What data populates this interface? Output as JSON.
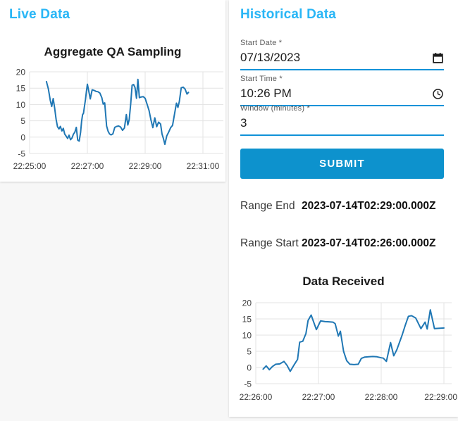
{
  "colors": {
    "page_background": "#f7f7f7",
    "card_background": "#ffffff",
    "heading_accent": "#29b6f6",
    "input_underline": "#1092d8",
    "submit_background": "#0d92cd",
    "submit_text": "#ffffff",
    "chart_line": "#1f77b4",
    "chart_grid": "#e3e3e3"
  },
  "live_panel": {
    "title": "Live Data"
  },
  "historical_panel": {
    "title": "Historical Data",
    "fields": [
      {
        "label": "Start Date *",
        "value": "07/13/2023",
        "icon": "calendar-icon"
      },
      {
        "label": "Start Time *",
        "value": "10:26 PM",
        "icon": "clock-icon"
      },
      {
        "label": "Window (minutes) *",
        "value": "3",
        "icon": null
      }
    ],
    "submit_label": "SUBMIT",
    "results": [
      {
        "label": "Range End",
        "value": "2023-07-14T02:29:00.000Z"
      },
      {
        "label": "Range Start",
        "value": "2023-07-14T02:26:00.000Z"
      }
    ]
  },
  "chart_data": [
    {
      "type": "line",
      "title": "Aggregate QA Sampling",
      "xlabel": "",
      "ylabel": "",
      "legend": false,
      "grid": true,
      "x_start": "22:25:00",
      "x_unit": "seconds_after_x_start",
      "x_tick_labels": [
        "22:25:00",
        "22:27:00",
        "22:29:00",
        "22:31:00"
      ],
      "x_tick_seconds": [
        0,
        120,
        240,
        360
      ],
      "y_ticks": [
        20,
        15,
        10,
        5,
        0,
        -5
      ],
      "ylim": [
        -5,
        20
      ],
      "line_color": "#1f77b4",
      "points": [
        [
          35,
          17
        ],
        [
          39,
          14.8
        ],
        [
          43,
          11.2
        ],
        [
          46,
          9.4
        ],
        [
          49,
          11.8
        ],
        [
          52,
          9
        ],
        [
          55,
          5.5
        ],
        [
          58,
          3.2
        ],
        [
          61,
          2.5
        ],
        [
          64,
          3.3
        ],
        [
          67,
          1.9
        ],
        [
          70,
          2.7
        ],
        [
          73,
          0.9
        ],
        [
          76,
          0.3
        ],
        [
          79,
          -0.4
        ],
        [
          82,
          0.6
        ],
        [
          85,
          -0.8
        ],
        [
          88,
          -0.3
        ],
        [
          91,
          0.9
        ],
        [
          94,
          1.5
        ],
        [
          97,
          3
        ],
        [
          100,
          -0.9
        ],
        [
          103,
          -1.2
        ],
        [
          106,
          1.5
        ],
        [
          108,
          4.8
        ],
        [
          110,
          6.9
        ],
        [
          112,
          7.3
        ],
        [
          114,
          9.5
        ],
        [
          116,
          11.5
        ],
        [
          118,
          13.9
        ],
        [
          120,
          16.2
        ],
        [
          123,
          14.1
        ],
        [
          126,
          11.7
        ],
        [
          130,
          14.5
        ],
        [
          134,
          14.3
        ],
        [
          138,
          14
        ],
        [
          142,
          13.9
        ],
        [
          146,
          13.5
        ],
        [
          150,
          12.1
        ],
        [
          153,
          10.1
        ],
        [
          156,
          10.5
        ],
        [
          160,
          3.4
        ],
        [
          163,
          1.8
        ],
        [
          166,
          1
        ],
        [
          169,
          0.7
        ],
        [
          173,
          1
        ],
        [
          177,
          3
        ],
        [
          181,
          3.3
        ],
        [
          185,
          3.4
        ],
        [
          189,
          3.1
        ],
        [
          193,
          2.1
        ],
        [
          197,
          2.8
        ],
        [
          201,
          6.9
        ],
        [
          204,
          3.7
        ],
        [
          207,
          5.4
        ],
        [
          210,
          10.2
        ],
        [
          213,
          15.9
        ],
        [
          216,
          16.1
        ],
        [
          219,
          15.2
        ],
        [
          222,
          11.9
        ],
        [
          225,
          17.7
        ],
        [
          228,
          12.1
        ],
        [
          232,
          12.3
        ],
        [
          236,
          12.4
        ],
        [
          240,
          11.9
        ],
        [
          244,
          10.1
        ],
        [
          248,
          8.2
        ],
        [
          252,
          5.3
        ],
        [
          256,
          2.9
        ],
        [
          260,
          5.9
        ],
        [
          264,
          3.2
        ],
        [
          268,
          4.6
        ],
        [
          272,
          4
        ],
        [
          275,
          1
        ],
        [
          278,
          -0.5
        ],
        [
          281,
          -2.2
        ],
        [
          285,
          0.4
        ],
        [
          289,
          1.6
        ],
        [
          293,
          2.9
        ],
        [
          297,
          3.6
        ],
        [
          301,
          7.1
        ],
        [
          305,
          10.4
        ],
        [
          308,
          9.1
        ],
        [
          311,
          10.9
        ],
        [
          315,
          15.1
        ],
        [
          319,
          15.3
        ],
        [
          323,
          14.7
        ],
        [
          327,
          13.2
        ],
        [
          330,
          13.7
        ]
      ]
    },
    {
      "type": "line",
      "title": "Data Received",
      "xlabel": "",
      "ylabel": "",
      "legend": false,
      "grid": true,
      "x_start": "22:26:00",
      "x_unit": "seconds_after_x_start",
      "x_tick_labels": [
        "22:26:00",
        "22:27:00",
        "22:28:00",
        "22:29:00"
      ],
      "x_tick_seconds": [
        0,
        60,
        120,
        180
      ],
      "y_ticks": [
        20,
        15,
        10,
        5,
        0,
        -5
      ],
      "ylim": [
        -5,
        20
      ],
      "line_color": "#1f77b4",
      "points": [
        [
          7,
          -0.5
        ],
        [
          10,
          0.5
        ],
        [
          13,
          -0.7
        ],
        [
          16,
          0.3
        ],
        [
          19,
          1
        ],
        [
          23,
          1.1
        ],
        [
          27,
          1.9
        ],
        [
          30,
          0.6
        ],
        [
          33,
          -1.2
        ],
        [
          37,
          1
        ],
        [
          40,
          2.5
        ],
        [
          42,
          7.8
        ],
        [
          45,
          8.1
        ],
        [
          48,
          10.5
        ],
        [
          50,
          14.5
        ],
        [
          53,
          16.2
        ],
        [
          58,
          11.7
        ],
        [
          62,
          14.4
        ],
        [
          66,
          14.2
        ],
        [
          70,
          14.1
        ],
        [
          74,
          14
        ],
        [
          76,
          13.5
        ],
        [
          79,
          9.7
        ],
        [
          81,
          11.2
        ],
        [
          84,
          5
        ],
        [
          87,
          2.1
        ],
        [
          90,
          1
        ],
        [
          94,
          0.9
        ],
        [
          98,
          1
        ],
        [
          101,
          2.8
        ],
        [
          104,
          3.2
        ],
        [
          108,
          3.3
        ],
        [
          112,
          3.4
        ],
        [
          116,
          3.3
        ],
        [
          120,
          3
        ],
        [
          122,
          2.9
        ],
        [
          125,
          1.9
        ],
        [
          129,
          7.7
        ],
        [
          132,
          3.6
        ],
        [
          135,
          5.5
        ],
        [
          140,
          10
        ],
        [
          143,
          13
        ],
        [
          146,
          15.8
        ],
        [
          149,
          16
        ],
        [
          153,
          15.3
        ],
        [
          158,
          12
        ],
        [
          162,
          14
        ],
        [
          164,
          11.9
        ],
        [
          167,
          17.8
        ],
        [
          171,
          12
        ],
        [
          176,
          12.1
        ],
        [
          180,
          12.2
        ]
      ]
    }
  ]
}
